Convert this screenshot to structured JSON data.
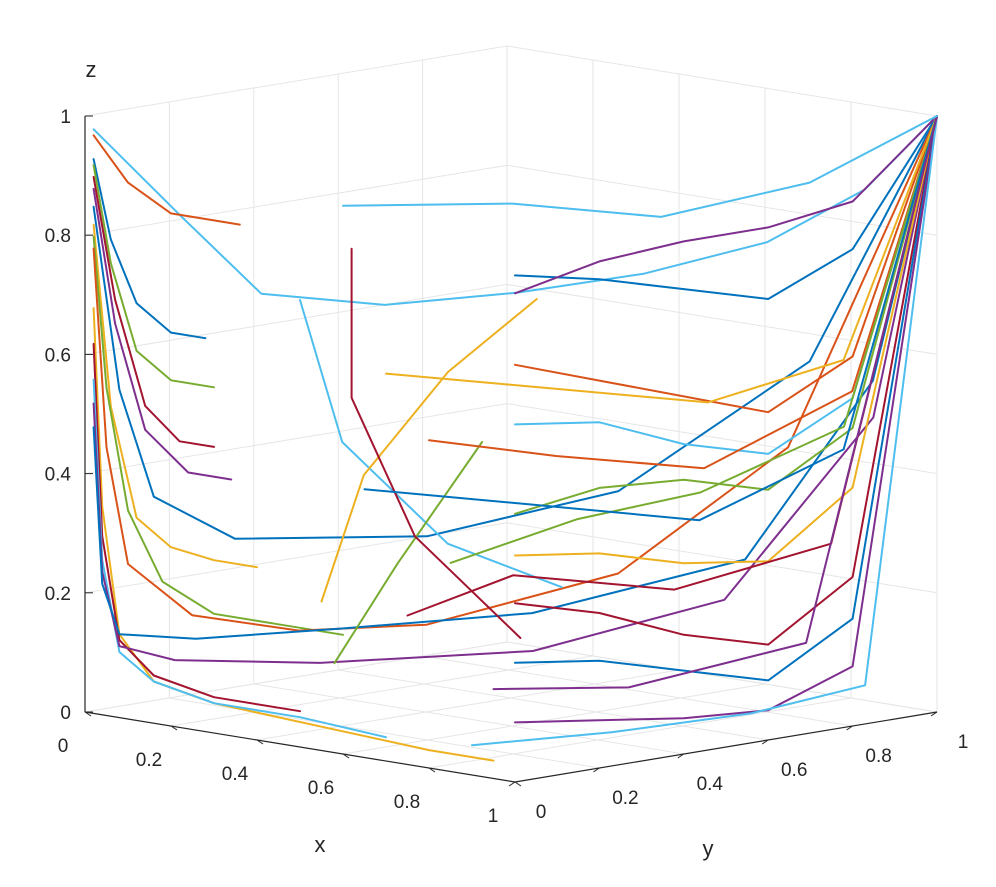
{
  "chart_data": {
    "type": "line",
    "projection": "3d",
    "title": "",
    "xlabel": "x",
    "ylabel": "y",
    "zlabel": "z",
    "xlim": [
      0,
      1
    ],
    "ylim": [
      0,
      1
    ],
    "zlim": [
      0,
      1
    ],
    "x_ticks": [
      "0",
      "0.2",
      "0.4",
      "0.6",
      "0.8",
      "1"
    ],
    "y_ticks": [
      "0",
      "0.2",
      "0.4",
      "0.6",
      "0.8",
      "1"
    ],
    "z_ticks": [
      "0",
      "0.2",
      "0.4",
      "0.6",
      "0.8",
      "1"
    ],
    "grid": true,
    "box": "back planes with gridlines",
    "colors": [
      "#0072BD",
      "#D95319",
      "#EDB120",
      "#7E2F8E",
      "#77AC30",
      "#4DBEEE",
      "#A2142F"
    ],
    "attractor": {
      "x": 1,
      "y": 1,
      "z": 1
    },
    "note_streamlines": "many trajectories converge to the corner (1,1,1); each approximated below",
    "series": [
      {
        "color": "#4DBEEE",
        "x": [
          0.02,
          0.22,
          0.41,
          0.55,
          0.66,
          0.76,
          0.85,
          0.93,
          1.0
        ],
        "y": [
          0.0,
          0.0,
          0.0,
          0.15,
          0.35,
          0.55,
          0.75,
          0.9,
          1.0
        ],
        "z": [
          0.98,
          0.86,
          0.75,
          0.73,
          0.74,
          0.76,
          0.8,
          0.88,
          1.0
        ]
      },
      {
        "color": "#D95319",
        "x": [
          0.02,
          0.1,
          0.2,
          0.3,
          0.36
        ],
        "y": [
          0.0,
          0.0,
          0.0,
          0.0,
          0.0
        ],
        "z": [
          0.97,
          0.9,
          0.86,
          0.86,
          0.86
        ]
      },
      {
        "color": "#0072BD",
        "x": [
          0.02,
          0.06,
          0.12,
          0.2,
          0.28
        ],
        "y": [
          0.0,
          0.0,
          0.0,
          0.0,
          0.0
        ],
        "z": [
          0.93,
          0.8,
          0.7,
          0.66,
          0.66
        ]
      },
      {
        "color": "#77AC30",
        "x": [
          0.02,
          0.06,
          0.12,
          0.2,
          0.3
        ],
        "y": [
          0.0,
          0.0,
          0.0,
          0.0,
          0.0
        ],
        "z": [
          0.92,
          0.76,
          0.62,
          0.58,
          0.58
        ]
      },
      {
        "color": "#A2142F",
        "x": [
          0.02,
          0.07,
          0.14,
          0.22,
          0.3
        ],
        "y": [
          0.0,
          0.0,
          0.0,
          0.0,
          0.0
        ],
        "z": [
          0.9,
          0.7,
          0.53,
          0.48,
          0.48
        ]
      },
      {
        "color": "#7E2F8E",
        "x": [
          0.02,
          0.07,
          0.14,
          0.24,
          0.34
        ],
        "y": [
          0.0,
          0.0,
          0.0,
          0.0,
          0.0
        ],
        "z": [
          0.88,
          0.66,
          0.49,
          0.43,
          0.43
        ]
      },
      {
        "color": "#0072BD",
        "x": [
          0.02,
          0.08,
          0.16,
          0.3,
          0.55,
          0.75,
          0.9,
          1.0
        ],
        "y": [
          0.0,
          0.0,
          0.0,
          0.05,
          0.25,
          0.5,
          0.8,
          1.0
        ],
        "z": [
          0.85,
          0.55,
          0.38,
          0.32,
          0.33,
          0.4,
          0.6,
          1.0
        ]
      },
      {
        "color": "#EDB120",
        "x": [
          0.02,
          0.06,
          0.12,
          0.2,
          0.3,
          0.4
        ],
        "y": [
          0.0,
          0.0,
          0.0,
          0.0,
          0.0,
          0.0
        ],
        "z": [
          0.82,
          0.52,
          0.34,
          0.3,
          0.29,
          0.29
        ]
      },
      {
        "color": "#77AC30",
        "x": [
          0.02,
          0.05,
          0.1,
          0.18,
          0.3,
          0.45,
          0.6
        ],
        "y": [
          0.0,
          0.0,
          0.0,
          0.0,
          0.0,
          0.0,
          0.0
        ],
        "z": [
          0.8,
          0.55,
          0.35,
          0.24,
          0.2,
          0.2,
          0.2
        ]
      },
      {
        "color": "#D95319",
        "x": [
          0.02,
          0.05,
          0.1,
          0.2,
          0.35,
          0.5,
          0.7,
          0.85,
          1.0
        ],
        "y": [
          0.0,
          0.0,
          0.0,
          0.05,
          0.15,
          0.3,
          0.55,
          0.8,
          1.0
        ],
        "z": [
          0.78,
          0.45,
          0.26,
          0.18,
          0.16,
          0.17,
          0.25,
          0.45,
          1.0
        ]
      },
      {
        "color": "#EDB120",
        "x": [
          0.02,
          0.04,
          0.08,
          0.16,
          0.3,
          0.55,
          0.8,
          0.95
        ],
        "y": [
          0.0,
          0.0,
          0.0,
          0.0,
          0.0,
          0.0,
          0.0,
          0.0
        ],
        "z": [
          0.68,
          0.35,
          0.14,
          0.07,
          0.05,
          0.04,
          0.03,
          0.03
        ]
      },
      {
        "color": "#A2142F",
        "x": [
          0.02,
          0.04,
          0.08,
          0.16,
          0.3,
          0.5
        ],
        "y": [
          0.0,
          0.0,
          0.0,
          0.0,
          0.0,
          0.0
        ],
        "z": [
          0.62,
          0.3,
          0.13,
          0.08,
          0.06,
          0.06
        ]
      },
      {
        "color": "#4DBEEE",
        "x": [
          0.02,
          0.04,
          0.08,
          0.16,
          0.3,
          0.5,
          0.7
        ],
        "y": [
          0.0,
          0.0,
          0.0,
          0.0,
          0.0,
          0.0,
          0.0
        ],
        "z": [
          0.56,
          0.26,
          0.11,
          0.07,
          0.05,
          0.05,
          0.04
        ]
      },
      {
        "color": "#7E2F8E",
        "x": [
          0.02,
          0.04,
          0.08,
          0.16,
          0.35,
          0.6,
          0.8,
          0.95,
          1.0
        ],
        "y": [
          0.0,
          0.0,
          0.0,
          0.05,
          0.2,
          0.45,
          0.7,
          0.9,
          1.0
        ],
        "z": [
          0.52,
          0.24,
          0.12,
          0.1,
          0.1,
          0.12,
          0.2,
          0.5,
          1.0
        ]
      },
      {
        "color": "#0072BD",
        "x": [
          0.02,
          0.04,
          0.08,
          0.16,
          0.3,
          0.5,
          0.75,
          0.9,
          1.0
        ],
        "y": [
          0.0,
          0.0,
          0.0,
          0.1,
          0.3,
          0.55,
          0.8,
          0.95,
          1.0
        ],
        "z": [
          0.48,
          0.22,
          0.14,
          0.13,
          0.14,
          0.16,
          0.25,
          0.55,
          1.0
        ]
      },
      {
        "color": "#4DBEEE",
        "x": [
          0.5,
          0.5,
          0.5,
          0.52
        ],
        "y": [
          0.0,
          0.1,
          0.35,
          0.6
        ],
        "z": [
          0.75,
          0.5,
          0.3,
          0.2
        ]
      },
      {
        "color": "#EDB120",
        "x": [
          0.55,
          0.55,
          0.55,
          0.56
        ],
        "y": [
          0.0,
          0.1,
          0.3,
          0.5
        ],
        "z": [
          0.25,
          0.45,
          0.6,
          0.7
        ]
      },
      {
        "color": "#77AC30",
        "x": [
          0.58,
          0.58,
          0.58
        ],
        "y": [
          0.0,
          0.15,
          0.35
        ],
        "z": [
          0.15,
          0.3,
          0.48
        ]
      },
      {
        "color": "#A2142F",
        "x": [
          0.62,
          0.62,
          0.62,
          0.62
        ],
        "y": [
          0.0,
          0.0,
          0.15,
          0.4
        ],
        "z": [
          0.85,
          0.6,
          0.35,
          0.15
        ]
      },
      {
        "color": "#0072BD",
        "x": [
          1.0,
          1.0,
          1.0,
          1.0,
          1.0,
          1.0
        ],
        "y": [
          0.0,
          0.2,
          0.4,
          0.6,
          0.8,
          1.0
        ],
        "z": [
          0.85,
          0.82,
          0.78,
          0.74,
          0.8,
          1.0
        ]
      },
      {
        "color": "#7E2F8E",
        "x": [
          1.0,
          1.0,
          1.0,
          1.0,
          1.0,
          1.0
        ],
        "y": [
          0.0,
          0.2,
          0.4,
          0.6,
          0.8,
          1.0
        ],
        "z": [
          0.82,
          0.85,
          0.86,
          0.86,
          0.88,
          1.0
        ]
      },
      {
        "color": "#D95319",
        "x": [
          1.0,
          1.0,
          1.0,
          1.0,
          1.0,
          1.0
        ],
        "y": [
          0.0,
          0.2,
          0.4,
          0.6,
          0.8,
          1.0
        ],
        "z": [
          0.7,
          0.65,
          0.6,
          0.55,
          0.62,
          1.0
        ]
      },
      {
        "color": "#4DBEEE",
        "x": [
          1.0,
          1.0,
          1.0,
          1.0,
          1.0,
          1.0
        ],
        "y": [
          0.0,
          0.2,
          0.4,
          0.6,
          0.8,
          1.0
        ],
        "z": [
          0.6,
          0.58,
          0.52,
          0.48,
          0.55,
          1.0
        ]
      },
      {
        "color": "#77AC30",
        "x": [
          1.0,
          1.0,
          1.0,
          1.0,
          1.0,
          1.0
        ],
        "y": [
          0.0,
          0.2,
          0.4,
          0.6,
          0.8,
          1.0
        ],
        "z": [
          0.45,
          0.47,
          0.46,
          0.42,
          0.5,
          1.0
        ]
      },
      {
        "color": "#EDB120",
        "x": [
          1.0,
          1.0,
          1.0,
          1.0,
          1.0,
          1.0
        ],
        "y": [
          0.0,
          0.2,
          0.4,
          0.6,
          0.8,
          1.0
        ],
        "z": [
          0.38,
          0.36,
          0.32,
          0.3,
          0.4,
          1.0
        ]
      },
      {
        "color": "#A2142F",
        "x": [
          1.0,
          1.0,
          1.0,
          1.0,
          1.0,
          1.0
        ],
        "y": [
          0.0,
          0.2,
          0.4,
          0.6,
          0.8,
          1.0
        ],
        "z": [
          0.3,
          0.26,
          0.2,
          0.16,
          0.25,
          1.0
        ]
      },
      {
        "color": "#0072BD",
        "x": [
          1.0,
          1.0,
          1.0,
          1.0,
          1.0,
          1.0
        ],
        "y": [
          0.0,
          0.2,
          0.4,
          0.6,
          0.8,
          1.0
        ],
        "z": [
          0.2,
          0.18,
          0.14,
          0.1,
          0.18,
          1.0
        ]
      },
      {
        "color": "#7E2F8E",
        "x": [
          1.0,
          1.0,
          1.0,
          1.0,
          1.0,
          1.0
        ],
        "y": [
          0.0,
          0.2,
          0.4,
          0.6,
          0.8,
          1.0
        ],
        "z": [
          0.1,
          0.08,
          0.06,
          0.05,
          0.1,
          1.0
        ]
      },
      {
        "color": "#4DBEEE",
        "x": [
          0.9,
          0.93,
          0.96,
          0.98,
          1.0
        ],
        "y": [
          0.0,
          0.3,
          0.6,
          0.85,
          1.0
        ],
        "z": [
          0.05,
          0.04,
          0.04,
          0.06,
          1.0
        ]
      },
      {
        "color": "#D95319",
        "x": [
          0.8,
          0.85,
          0.9,
          0.95,
          1.0
        ],
        "y": [
          0.0,
          0.25,
          0.55,
          0.85,
          1.0
        ],
        "z": [
          0.55,
          0.5,
          0.45,
          0.55,
          1.0
        ]
      },
      {
        "color": "#EDB120",
        "x": [
          0.7,
          0.78,
          0.86,
          0.93,
          1.0
        ],
        "y": [
          0.0,
          0.3,
          0.6,
          0.85,
          1.0
        ],
        "z": [
          0.65,
          0.6,
          0.55,
          0.6,
          1.0
        ]
      },
      {
        "color": "#77AC30",
        "x": [
          0.85,
          0.9,
          0.94,
          0.98,
          1.0
        ],
        "y": [
          0.0,
          0.25,
          0.5,
          0.8,
          1.0
        ],
        "z": [
          0.35,
          0.4,
          0.42,
          0.5,
          1.0
        ]
      },
      {
        "color": "#A2142F",
        "x": [
          0.75,
          0.8,
          0.88,
          0.95,
          1.0
        ],
        "y": [
          0.0,
          0.2,
          0.5,
          0.8,
          1.0
        ],
        "z": [
          0.25,
          0.3,
          0.25,
          0.3,
          1.0
        ]
      },
      {
        "color": "#0072BD",
        "x": [
          0.65,
          0.74,
          0.84,
          0.93,
          1.0
        ],
        "y": [
          0.0,
          0.3,
          0.6,
          0.85,
          1.0
        ],
        "z": [
          0.45,
          0.4,
          0.35,
          0.45,
          1.0
        ]
      },
      {
        "color": "#7E2F8E",
        "x": [
          0.95,
          0.97,
          0.99,
          1.0
        ],
        "y": [
          0.0,
          0.3,
          0.7,
          1.0
        ],
        "z": [
          0.15,
          0.12,
          0.15,
          1.0
        ]
      },
      {
        "color": "#4DBEEE",
        "x": [
          0.6,
          0.7,
          0.8,
          0.9,
          1.0
        ],
        "y": [
          0.0,
          0.3,
          0.55,
          0.8,
          1.0
        ],
        "z": [
          0.92,
          0.9,
          0.86,
          0.9,
          1.0
        ]
      }
    ]
  }
}
